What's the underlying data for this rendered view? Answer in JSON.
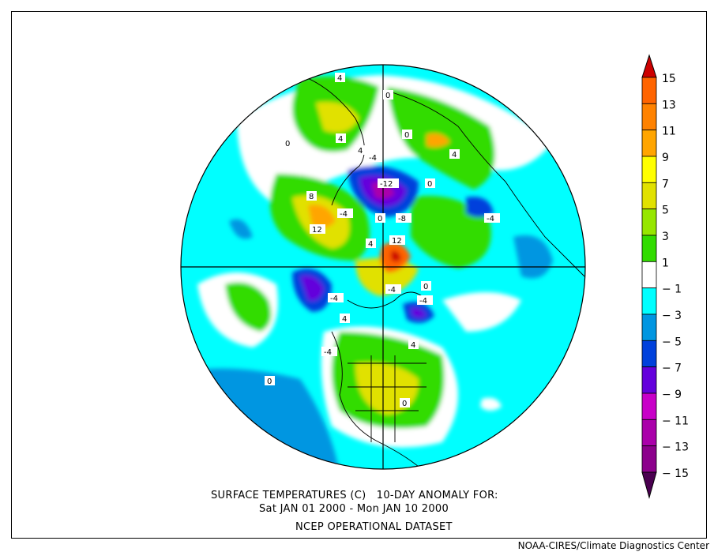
{
  "title": {
    "line1": "SURFACE TEMPERATURES (C)   10-DAY ANOMALY FOR:",
    "line2": "Sat JAN 01 2000 - Mon JAN 10 2000",
    "line3": "NCEP OPERATIONAL DATASET"
  },
  "credit": "NOAA-CIRES/Climate Diagnostics Center",
  "colorbar": {
    "labels": [
      "15",
      "13",
      "11",
      "9",
      "7",
      "5",
      "3",
      "1",
      "-1",
      "-3",
      "-5",
      "-7",
      "-9",
      "-11",
      "-13",
      "-15"
    ],
    "over_color": "#cc0000",
    "under_color": "#4a0050",
    "colors": [
      "#ff6400",
      "#ff8200",
      "#ffa500",
      "#ffff00",
      "#e1e100",
      "#96e600",
      "#32dc00",
      "#ffffff",
      "#00ffff",
      "#0096e1",
      "#0041dc",
      "#6400dc",
      "#c800c8",
      "#aa00aa",
      "#8c008c"
    ]
  },
  "map": {
    "projection": "north polar stereographic",
    "contour_labels": [
      "4",
      "0",
      "4",
      "4",
      "0",
      "-4",
      "-12",
      "0",
      "8",
      "12",
      "-4",
      "4",
      "12",
      "0",
      "-8",
      "-4",
      "0",
      "-4",
      "-4",
      "4",
      "-4",
      "0",
      "-4",
      "4",
      "0",
      "4",
      "0"
    ]
  }
}
